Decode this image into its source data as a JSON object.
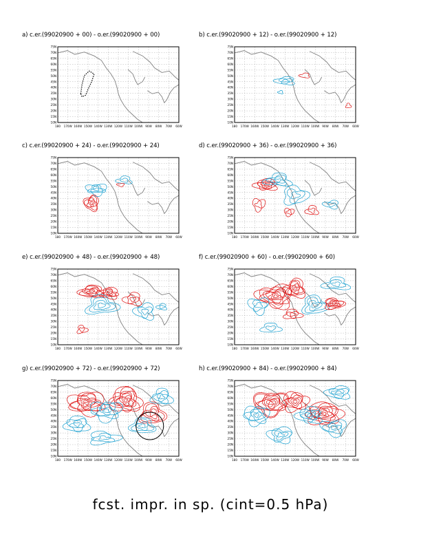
{
  "caption": "fcst. impr. in sp. (cint=0.5 hPa)",
  "colors": {
    "positive": "#e01010",
    "negative": "#1aa0d0",
    "coast": "#808080",
    "grid": "#9a9a9a",
    "frame": "#000000"
  },
  "axes": {
    "x_ticks": [
      "180",
      "170W",
      "160W",
      "150W",
      "140W",
      "130W",
      "120W",
      "110W",
      "100W",
      "90W",
      "80W",
      "70W",
      "60W"
    ],
    "y_ticks": [
      "10N",
      "15N",
      "20N",
      "25N",
      "30N",
      "35N",
      "40N",
      "45N",
      "50N",
      "55N",
      "60N",
      "65N",
      "70N",
      "75N"
    ]
  },
  "chart_data": [
    {
      "type": "contour",
      "panel": "a",
      "title": "a) c.er.(99020900 + 00) - o.er.(99020900 + 00)",
      "lead_hours": 0,
      "xlim": [
        "180",
        "60W"
      ],
      "ylim": [
        "10N",
        "75N"
      ],
      "contour_interval_hPa": 0.5,
      "grid": "dashed",
      "marker": "target-region outline"
    },
    {
      "type": "contour",
      "panel": "b",
      "title": "b) c.er.(99020900 + 12) - o.er.(99020900 + 12)",
      "lead_hours": 12,
      "xlim": [
        "180",
        "60W"
      ],
      "ylim": [
        "10N",
        "75N"
      ],
      "contour_interval_hPa": 0.5,
      "grid": "dashed"
    },
    {
      "type": "contour",
      "panel": "c",
      "title": "c) c.er.(99020900 + 24) - o.er.(99020900 + 24)",
      "lead_hours": 24,
      "xlim": [
        "180",
        "60W"
      ],
      "ylim": [
        "10N",
        "75N"
      ],
      "contour_interval_hPa": 0.5,
      "grid": "dashed"
    },
    {
      "type": "contour",
      "panel": "d",
      "title": "d) c.er.(99020900 + 36) - o.er.(99020900 + 36)",
      "lead_hours": 36,
      "xlim": [
        "180",
        "60W"
      ],
      "ylim": [
        "10N",
        "75N"
      ],
      "contour_interval_hPa": 0.5,
      "grid": "dashed"
    },
    {
      "type": "contour",
      "panel": "e",
      "title": "e) c.er.(99020900 + 48) - o.er.(99020900 + 48)",
      "lead_hours": 48,
      "xlim": [
        "180",
        "60W"
      ],
      "ylim": [
        "10N",
        "75N"
      ],
      "contour_interval_hPa": 0.5,
      "grid": "dashed"
    },
    {
      "type": "contour",
      "panel": "f",
      "title": "f) c.er.(99020900 + 60) - o.er.(99020900 + 60)",
      "lead_hours": 60,
      "xlim": [
        "180",
        "60W"
      ],
      "ylim": [
        "10N",
        "75N"
      ],
      "contour_interval_hPa": 0.5,
      "grid": "dashed"
    },
    {
      "type": "contour",
      "panel": "g",
      "title": "g) c.er.(99020900 + 72) - o.er.(99020900 + 72)",
      "lead_hours": 72,
      "xlim": [
        "180",
        "60W"
      ],
      "ylim": [
        "10N",
        "75N"
      ],
      "contour_interval_hPa": 0.5,
      "grid": "dashed",
      "marker": "verification circle"
    },
    {
      "type": "contour",
      "panel": "h",
      "title": "h) c.er.(99020900 + 84) - o.er.(99020900 + 84)",
      "lead_hours": 84,
      "xlim": [
        "180",
        "60W"
      ],
      "ylim": [
        "10N",
        "75N"
      ],
      "contour_interval_hPa": 0.5,
      "grid": "dashed"
    }
  ]
}
